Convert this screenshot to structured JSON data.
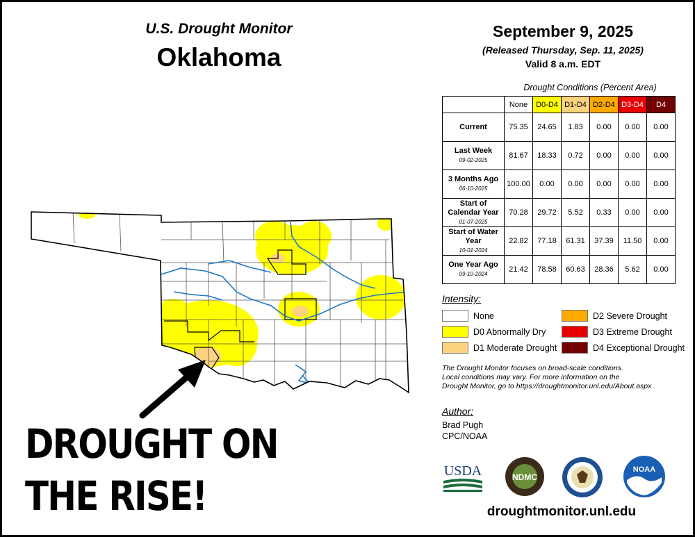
{
  "header": {
    "monitor_title": "U.S. Drought Monitor",
    "state": "Oklahoma",
    "date": "September 9, 2025",
    "released": "(Released Thursday, Sep. 11, 2025)",
    "valid": "Valid 8 a.m. EDT"
  },
  "table": {
    "caption": "Drought Conditions (Percent Area)",
    "columns": [
      "None",
      "D0-D4",
      "D1-D4",
      "D2-D4",
      "D3-D4",
      "D4"
    ],
    "column_colors": [
      "#ffffff",
      "#ffff00",
      "#fcd37f",
      "#ffaa00",
      "#e60000",
      "#730000"
    ],
    "column_text_colors": [
      "#000000",
      "#000000",
      "#000000",
      "#000000",
      "#ffffff",
      "#ffffff"
    ],
    "rows": [
      {
        "label": "Current",
        "date": "",
        "values": [
          "75.35",
          "24.65",
          "1.83",
          "0.00",
          "0.00",
          "0.00"
        ]
      },
      {
        "label": "Last Week",
        "date": "09-02-2025",
        "values": [
          "81.67",
          "18.33",
          "0.72",
          "0.00",
          "0.00",
          "0.00"
        ]
      },
      {
        "label": "3 Months Ago",
        "date": "06-10-2025",
        "values": [
          "100.00",
          "0.00",
          "0.00",
          "0.00",
          "0.00",
          "0.00"
        ]
      },
      {
        "label": "Start of Calendar Year",
        "date": "01-07-2025",
        "values": [
          "70.28",
          "29.72",
          "5.52",
          "0.33",
          "0.00",
          "0.00"
        ]
      },
      {
        "label": "Start of Water Year",
        "date": "10-01-2024",
        "values": [
          "22.82",
          "77.18",
          "61.31",
          "37.39",
          "11.50",
          "0.00"
        ]
      },
      {
        "label": "One Year Ago",
        "date": "09-10-2024",
        "values": [
          "21.42",
          "78.58",
          "60.63",
          "28.36",
          "5.62",
          "0.00"
        ]
      }
    ]
  },
  "intensity": {
    "title": "Intensity:",
    "items": [
      {
        "label": "None",
        "color": "#ffffff"
      },
      {
        "label": "D0 Abnormally Dry",
        "color": "#ffff00"
      },
      {
        "label": "D1 Moderate Drought",
        "color": "#fcd37f"
      },
      {
        "label": "D2 Severe Drought",
        "color": "#ffaa00"
      },
      {
        "label": "D3 Extreme Drought",
        "color": "#e60000"
      },
      {
        "label": "D4 Exceptional Drought",
        "color": "#730000"
      }
    ]
  },
  "note": {
    "line1": "The Drought Monitor focuses on broad-scale conditions.",
    "line2": "Local conditions may vary. For more information on the",
    "line3": "Drought Monitor, go to https://droughtmonitor.unl.edu/About.aspx"
  },
  "author": {
    "title": "Author:",
    "name": "Brad Pugh",
    "org": "CPC/NOAA"
  },
  "logos": {
    "usda": "USDA",
    "ndmc": "NDMC",
    "noaa": "NOAA"
  },
  "footer_url": "droughtmonitor.unl.edu",
  "banner": {
    "line1": "DROUGHT ON",
    "line2": "THE RISE!"
  },
  "map": {
    "colors": {
      "d0": "#ffff00",
      "d1": "#fcd37f",
      "water": "#1e78c8",
      "border": "#000000",
      "county": "#555555"
    }
  }
}
